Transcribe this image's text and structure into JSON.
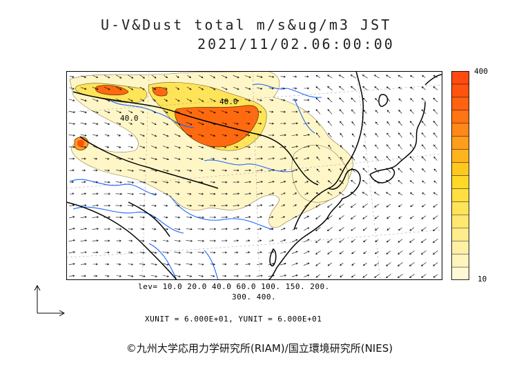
{
  "title": {
    "line1": "U-V&Dust total m/s&ug/m3 JST",
    "line2": "2021/11/02.06:00:00"
  },
  "contour_labels": [
    "40.0",
    "40.0"
  ],
  "colorbar": {
    "max_label": "400",
    "min_label": "10",
    "colors": [
      "#fff9d6",
      "#fff4bc",
      "#fff0a6",
      "#ffec8a",
      "#ffe870",
      "#ffe45a",
      "#ffe040",
      "#ffd928",
      "#ffc820",
      "#ffb41e",
      "#ff9e1c",
      "#ff8818",
      "#ff7414",
      "#ff6210",
      "#ff5410",
      "#ff4a10"
    ]
  },
  "levels": {
    "line1": "lev= 10.0 20.0 40.0 60.0 100. 150. 200.",
    "line2": "300. 400."
  },
  "units": "XUNIT = 6.000E+01, YUNIT = 6.000E+01",
  "copyright": "©九州大学応用力学研究所(RIAM)/国立環境研究所(NIES)",
  "colors": {
    "coast": "#000000",
    "river": "#1a64ff",
    "grid": "#999999",
    "dust_light": "#fff6c8",
    "dust_mid": "#ffd933",
    "dust_high": "#ff6a10"
  }
}
